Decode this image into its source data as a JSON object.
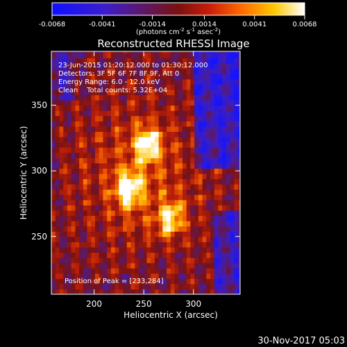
{
  "colorbar": {
    "ticks": [
      "-0.0068",
      "-0.0041",
      "-0.0014",
      "0.0014",
      "0.0041",
      "0.0068"
    ],
    "tick_values": [
      -0.0068,
      -0.0041,
      -0.0014,
      0.0014,
      0.0041,
      0.0068
    ],
    "range": [
      -0.0068,
      0.0068
    ],
    "unit_prefix": "(photons cm",
    "unit_exp1": "-2",
    "unit_mid": " s",
    "unit_exp2": "-1",
    "unit_mid2": " asec",
    "unit_exp3": "-2",
    "unit_suffix": ")"
  },
  "chart_data": {
    "type": "heatmap",
    "title": "Reconstructed RHESSI Image",
    "xlabel": "Heliocentric X (arcsec)",
    "ylabel": "Heliocentric Y (arcsec)",
    "xlim": [
      157,
      347
    ],
    "ylim": [
      206,
      391
    ],
    "xticks": [
      200,
      250,
      300
    ],
    "yticks": [
      250,
      300,
      350
    ],
    "colormap": "rainbow-hot (blue-purple-red-orange-yellow-white)",
    "peak": {
      "x": 233,
      "y": 284
    },
    "bright_sources": [
      {
        "x": 233,
        "y": 284,
        "intensity": 1.0
      },
      {
        "x": 252,
        "y": 318,
        "intensity": 0.95
      },
      {
        "x": 275,
        "y": 262,
        "intensity": 0.85
      }
    ],
    "annotations": [
      "23-Jun-2015 01:20:12.000 to 01:30:12.000",
      "Detectors: 3F 5F 6F 7F 8F 9F, Att 0",
      "Energy Range: 6.0 - 12.0 keV",
      "Clean    Total counts: 5.32E+04",
      "Position of Peak = [233,284]"
    ]
  },
  "footer": {
    "timestamp": "30-Nov-2017 05:03"
  }
}
